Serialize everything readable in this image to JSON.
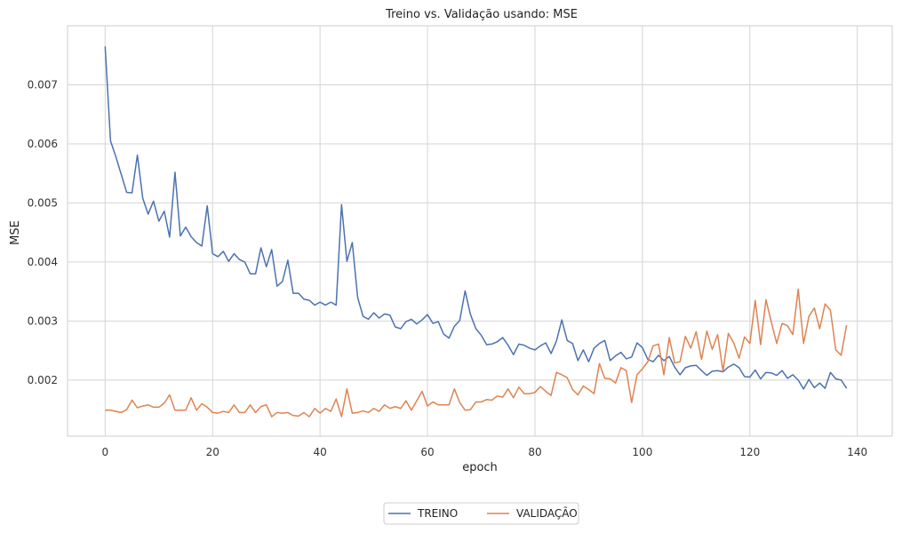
{
  "chart_data": {
    "type": "line",
    "title": "Treino vs. Validação usando: MSE",
    "xlabel": "epoch",
    "ylabel": "MSE",
    "xlim": [
      -7,
      146.5
    ],
    "ylim": [
      0.00105,
      0.008
    ],
    "xticks": [
      0,
      20,
      40,
      60,
      80,
      100,
      120,
      140
    ],
    "xtick_labels": [
      "0",
      "20",
      "40",
      "60",
      "80",
      "100",
      "120",
      "140"
    ],
    "yticks": [
      0.002,
      0.003,
      0.004,
      0.005,
      0.006,
      0.007
    ],
    "ytick_labels": [
      "0.002",
      "0.003",
      "0.004",
      "0.005",
      "0.006",
      "0.007"
    ],
    "grid": true,
    "legend_position": "bottom-center",
    "series": [
      {
        "name": "TREINO",
        "color": "#4c72b0",
        "values": [
          0.00765,
          0.00605,
          0.00578,
          0.00548,
          0.00518,
          0.00517,
          0.00581,
          0.00508,
          0.00481,
          0.00503,
          0.00469,
          0.00486,
          0.00442,
          0.00552,
          0.00444,
          0.00459,
          0.00443,
          0.00433,
          0.00427,
          0.00495,
          0.00414,
          0.00409,
          0.00418,
          0.00401,
          0.00414,
          0.00404,
          0.004,
          0.0038,
          0.0038,
          0.00424,
          0.00392,
          0.00421,
          0.00359,
          0.00367,
          0.00403,
          0.00347,
          0.00347,
          0.00337,
          0.00335,
          0.00327,
          0.00332,
          0.00327,
          0.00332,
          0.00327,
          0.00497,
          0.00401,
          0.00433,
          0.0034,
          0.00308,
          0.00303,
          0.00314,
          0.00305,
          0.00312,
          0.0031,
          0.0029,
          0.00287,
          0.00299,
          0.00303,
          0.00295,
          0.00302,
          0.00311,
          0.00296,
          0.00299,
          0.00278,
          0.00271,
          0.00291,
          0.00301,
          0.00351,
          0.00311,
          0.00287,
          0.00276,
          0.0026,
          0.00261,
          0.00265,
          0.00272,
          0.00259,
          0.00243,
          0.00261,
          0.00259,
          0.00254,
          0.00251,
          0.00258,
          0.00263,
          0.00245,
          0.00266,
          0.00302,
          0.00267,
          0.00262,
          0.00233,
          0.00251,
          0.00231,
          0.00254,
          0.00262,
          0.00267,
          0.00233,
          0.00241,
          0.00247,
          0.00236,
          0.00239,
          0.00263,
          0.00255,
          0.00235,
          0.00231,
          0.00242,
          0.00233,
          0.0024,
          0.00222,
          0.00209,
          0.00221,
          0.00224,
          0.00225,
          0.00216,
          0.00208,
          0.00215,
          0.00216,
          0.00214,
          0.00222,
          0.00227,
          0.00221,
          0.00206,
          0.00205,
          0.00217,
          0.00202,
          0.00213,
          0.00212,
          0.00208,
          0.00216,
          0.00203,
          0.00209,
          0.002,
          0.00185,
          0.00201,
          0.00187,
          0.00195,
          0.00186,
          0.00213,
          0.00202,
          0.002,
          0.00186
        ]
      },
      {
        "name": "VALIDAÇÃO",
        "color": "#dd8452",
        "values": [
          0.00149,
          0.00149,
          0.00147,
          0.00145,
          0.0015,
          0.00166,
          0.00153,
          0.00156,
          0.00158,
          0.00154,
          0.00154,
          0.00161,
          0.00175,
          0.00149,
          0.00149,
          0.00149,
          0.0017,
          0.00149,
          0.0016,
          0.00154,
          0.00145,
          0.00144,
          0.00147,
          0.00145,
          0.00158,
          0.00145,
          0.00145,
          0.00158,
          0.00145,
          0.00155,
          0.00158,
          0.00138,
          0.00145,
          0.00144,
          0.00145,
          0.0014,
          0.00139,
          0.00145,
          0.00138,
          0.00152,
          0.00144,
          0.00152,
          0.00147,
          0.00168,
          0.00138,
          0.00185,
          0.00144,
          0.00145,
          0.00148,
          0.00145,
          0.00152,
          0.00147,
          0.00158,
          0.00152,
          0.00155,
          0.00152,
          0.00165,
          0.00149,
          0.00165,
          0.00181,
          0.00156,
          0.00163,
          0.00158,
          0.00158,
          0.00158,
          0.00185,
          0.00162,
          0.00149,
          0.0015,
          0.00163,
          0.00163,
          0.00167,
          0.00166,
          0.00173,
          0.00171,
          0.00185,
          0.0017,
          0.00188,
          0.00177,
          0.00177,
          0.00179,
          0.00189,
          0.00181,
          0.00174,
          0.00213,
          0.00209,
          0.00204,
          0.00184,
          0.00175,
          0.0019,
          0.00184,
          0.00177,
          0.00228,
          0.00203,
          0.00202,
          0.00195,
          0.00221,
          0.00216,
          0.00162,
          0.00209,
          0.00219,
          0.00231,
          0.00258,
          0.00261,
          0.00209,
          0.00272,
          0.00229,
          0.00231,
          0.00274,
          0.00254,
          0.00282,
          0.00235,
          0.00283,
          0.00252,
          0.00277,
          0.00215,
          0.00279,
          0.00263,
          0.00237,
          0.00273,
          0.00262,
          0.00335,
          0.0026,
          0.00336,
          0.00298,
          0.00262,
          0.00296,
          0.00292,
          0.00277,
          0.00354,
          0.00262,
          0.00308,
          0.00322,
          0.00287,
          0.00329,
          0.00318,
          0.00251,
          0.00242,
          0.00293
        ]
      }
    ]
  }
}
